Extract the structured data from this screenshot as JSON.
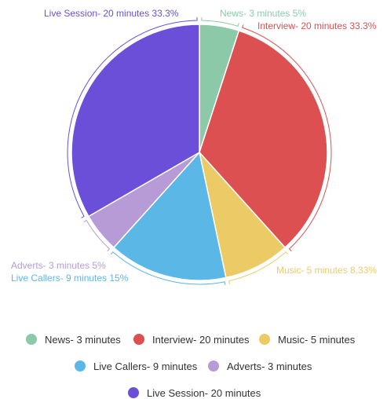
{
  "chart_data": {
    "type": "pie",
    "title": "",
    "slices": [
      {
        "label": "News- 3 minutes",
        "value": 3,
        "percent_label": "5%",
        "color": "#8cc9a8"
      },
      {
        "label": "Interview- 20 minutes",
        "value": 20,
        "percent_label": "33.3%",
        "color": "#dc5052"
      },
      {
        "label": "Music- 5 minutes",
        "value": 5,
        "percent_label": "8.33%",
        "color": "#eccb67"
      },
      {
        "label": "Live Callers- 9 minutes",
        "value": 9,
        "percent_label": "15%",
        "color": "#5bb7e6"
      },
      {
        "label": "Adverts- 3 minutes",
        "value": 3,
        "percent_label": "5%",
        "color": "#b79bd6"
      },
      {
        "label": "Live Session- 20 minutes",
        "value": 20,
        "percent_label": "33.3%",
        "color": "#6b4fd9"
      }
    ],
    "legend": {
      "position": "bottom",
      "rows": [
        [
          0,
          1,
          2
        ],
        [
          3,
          4
        ],
        [
          5
        ]
      ]
    }
  }
}
